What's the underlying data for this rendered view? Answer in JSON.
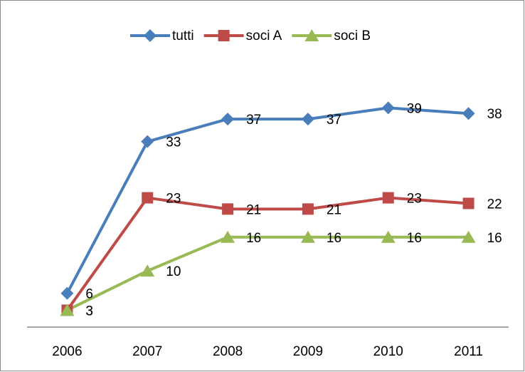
{
  "chart_data": {
    "type": "line",
    "categories": [
      "2006",
      "2007",
      "2008",
      "2009",
      "2010",
      "2011"
    ],
    "series": [
      {
        "name": "tutti",
        "color": "#4a7ebb",
        "marker": "diamond",
        "values": [
          6,
          33,
          37,
          37,
          39,
          38
        ]
      },
      {
        "name": "soci A",
        "color": "#be4b48",
        "marker": "square",
        "values": [
          3,
          23,
          21,
          21,
          23,
          22
        ]
      },
      {
        "name": "soci B",
        "color": "#98b954",
        "marker": "triangle",
        "values": [
          3,
          10,
          16,
          16,
          16,
          16
        ]
      }
    ],
    "ylim": [
      0,
      45
    ],
    "legend": "top",
    "data_labels": true
  }
}
